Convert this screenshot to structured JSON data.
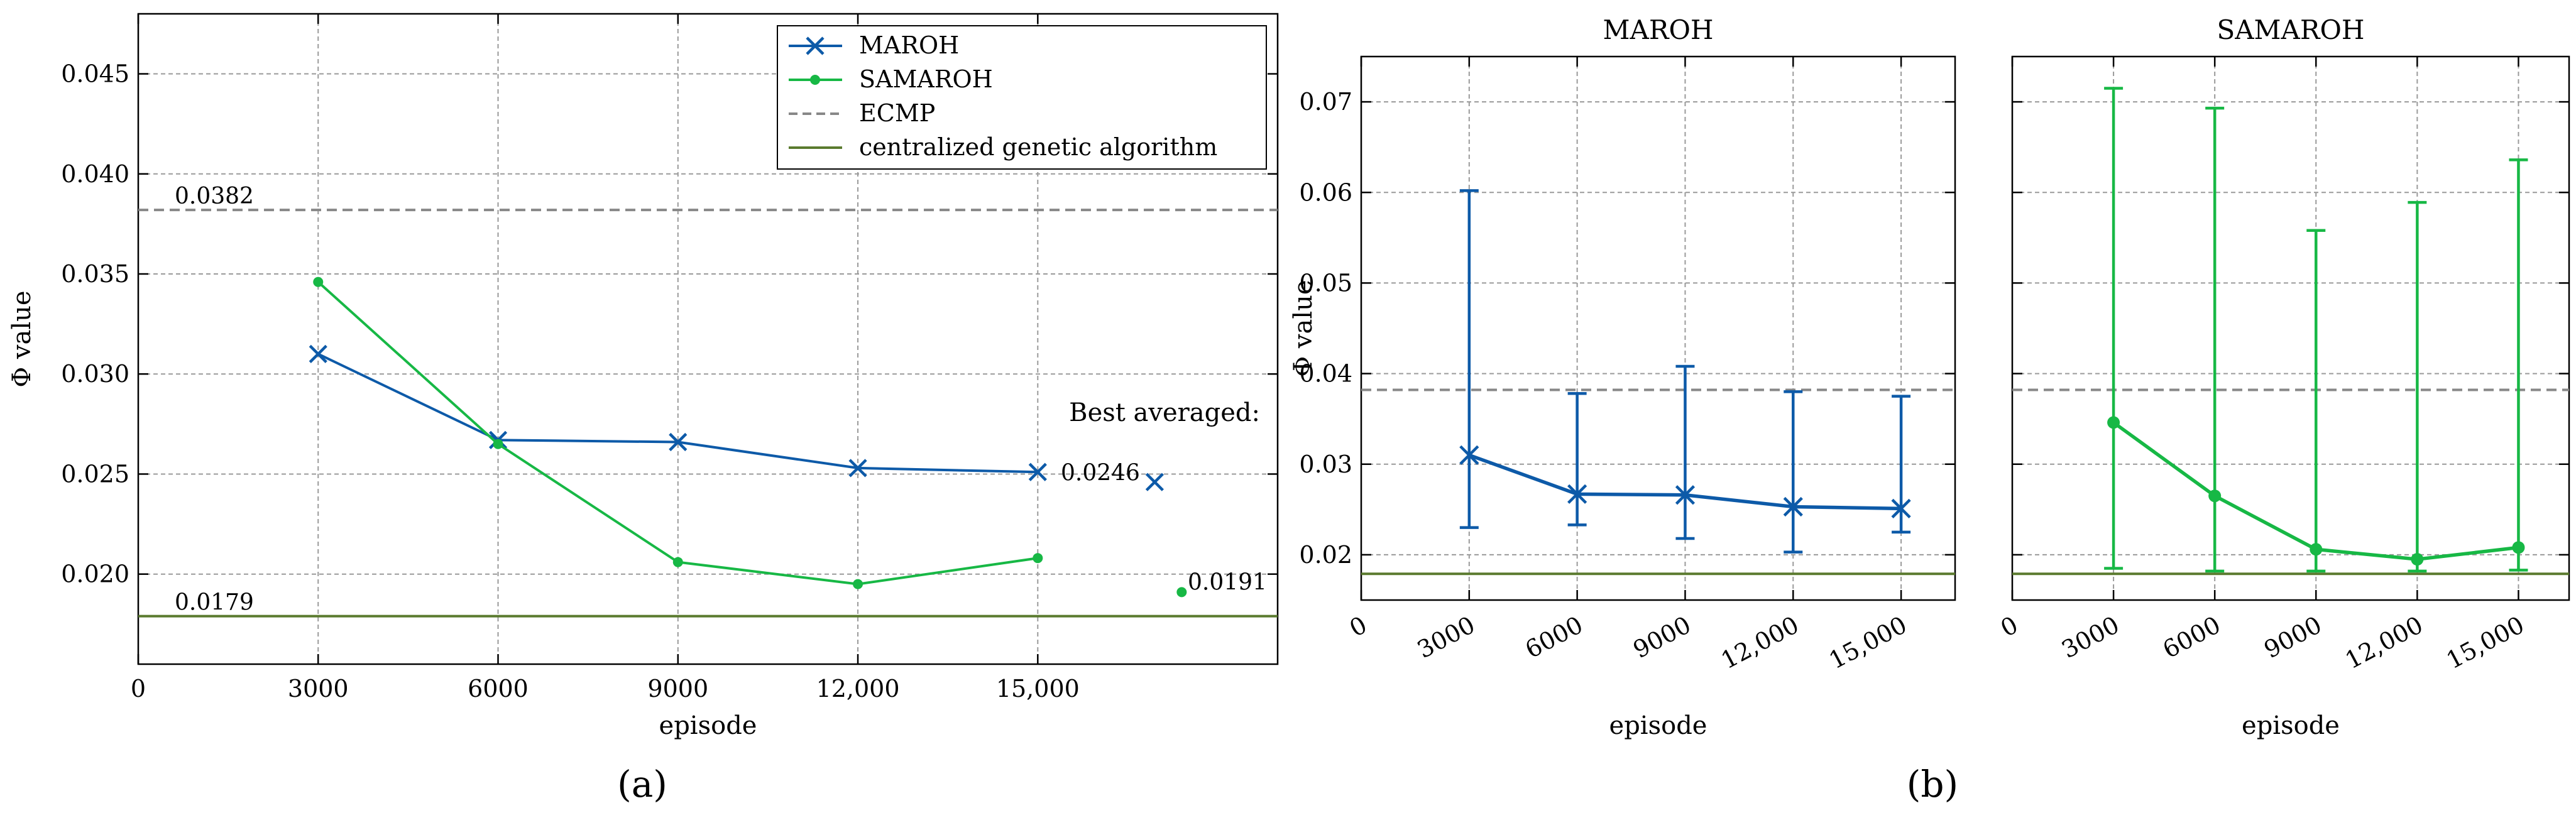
{
  "colors": {
    "maroh": "#0d5aa8",
    "samaroh": "#17b845",
    "ecmp": "#888888",
    "cga": "#5a7a2e"
  },
  "chart_data": [
    {
      "panel_label": "(a)",
      "type": "line",
      "xlabel": "episode",
      "ylabel": "Φ value",
      "xlim": [
        0,
        19000
      ],
      "ylim": [
        0.0155,
        0.048
      ],
      "x_ticks": [
        0,
        3000,
        6000,
        9000,
        12000,
        15000
      ],
      "x_tick_labels": [
        "0",
        "3000",
        "6000",
        "9000",
        "12,000",
        "15,000"
      ],
      "y_ticks": [
        0.02,
        0.025,
        0.03,
        0.035,
        0.04,
        0.045
      ],
      "y_tick_labels": [
        "0.020",
        "0.025",
        "0.030",
        "0.035",
        "0.040",
        "0.045"
      ],
      "grid": true,
      "legend_position": "top-right",
      "series": [
        {
          "name": "MAROH",
          "x": [
            3000,
            6000,
            9000,
            12000,
            15000
          ],
          "y": [
            0.031,
            0.0267,
            0.0266,
            0.0253,
            0.0251
          ]
        },
        {
          "name": "SAMAROH",
          "x": [
            3000,
            6000,
            9000,
            12000,
            15000
          ],
          "y": [
            0.0346,
            0.0265,
            0.0206,
            0.0195,
            0.0208
          ]
        },
        {
          "name": "ECMP",
          "y": 0.0382
        },
        {
          "name": "centralized genetic algorithm",
          "y": 0.0179
        }
      ],
      "annotations": {
        "ecmp_label": "0.0382",
        "cga_label": "0.0179",
        "best_title": "Best averaged:",
        "best_maroh": {
          "x": 16950,
          "y": 0.0246,
          "label": "0.0246"
        },
        "best_samaroh": {
          "x": 17400,
          "y": 0.0191,
          "label": "0.0191"
        }
      }
    },
    {
      "panel_label": "(b)",
      "type": "line",
      "title": "MAROH",
      "xlabel": "episode",
      "ylabel": "Φ value",
      "xlim": [
        0,
        16500
      ],
      "ylim": [
        0.015,
        0.075
      ],
      "x_ticks": [
        0,
        3000,
        6000,
        9000,
        12000,
        15000
      ],
      "x_tick_labels": [
        "0",
        "3000",
        "6000",
        "9000",
        "12,000",
        "15,000"
      ],
      "y_ticks": [
        0.02,
        0.03,
        0.04,
        0.05,
        0.06,
        0.07
      ],
      "y_tick_labels": [
        "0.02",
        "0.03",
        "0.04",
        "0.05",
        "0.06",
        "0.07"
      ],
      "grid": true,
      "ecmp": 0.0382,
      "cga": 0.0179,
      "series": [
        {
          "name": "MAROH",
          "x": [
            3000,
            6000,
            9000,
            12000,
            15000
          ],
          "y": [
            0.031,
            0.0267,
            0.0266,
            0.0253,
            0.0251
          ],
          "err_low": [
            0.023,
            0.0233,
            0.0218,
            0.0203,
            0.0225
          ],
          "err_high": [
            0.0602,
            0.0378,
            0.0408,
            0.038,
            0.0375
          ]
        }
      ]
    },
    {
      "panel_label": "",
      "type": "line",
      "title": "SAMAROH",
      "xlabel": "episode",
      "xlim": [
        0,
        16500
      ],
      "ylim": [
        0.015,
        0.075
      ],
      "x_ticks": [
        0,
        3000,
        6000,
        9000,
        12000,
        15000
      ],
      "x_tick_labels": [
        "0",
        "3000",
        "6000",
        "9000",
        "12,000",
        "15,000"
      ],
      "y_ticks": [
        0.02,
        0.03,
        0.04,
        0.05,
        0.06,
        0.07
      ],
      "grid": true,
      "ecmp": 0.0382,
      "cga": 0.0179,
      "series": [
        {
          "name": "SAMAROH",
          "x": [
            3000,
            6000,
            9000,
            12000,
            15000
          ],
          "y": [
            0.0346,
            0.0265,
            0.0206,
            0.0195,
            0.0208
          ],
          "err_low": [
            0.0185,
            0.0182,
            0.0182,
            0.0182,
            0.0183
          ],
          "err_high": [
            0.0715,
            0.0693,
            0.0558,
            0.0589,
            0.0636
          ]
        }
      ]
    }
  ]
}
